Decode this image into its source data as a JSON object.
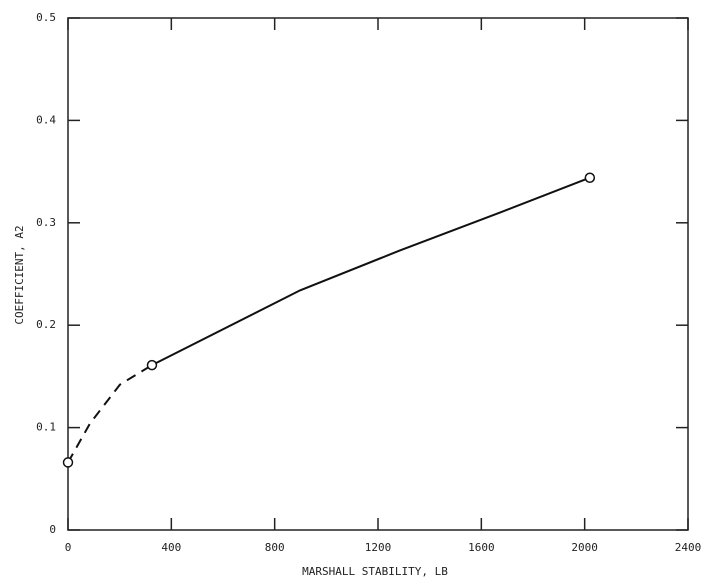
{
  "chart_data": {
    "type": "line",
    "xlabel": "MARSHALL STABILITY, LB",
    "ylabel": "COEFFICIENT, A2",
    "xlim": [
      0,
      2400
    ],
    "xticks": [
      0,
      400,
      800,
      1200,
      1600,
      2000,
      2400
    ],
    "ylim": [
      0,
      0.5
    ],
    "yticks": [
      0,
      0.1,
      0.2,
      0.3,
      0.4,
      0.5
    ],
    "color": "#111111",
    "series": [
      {
        "style": "dashed",
        "x": [
          0,
          85,
          201,
          325
        ],
        "values": [
          0.066,
          0.104,
          0.142,
          0.161
        ]
      },
      {
        "style": "solid",
        "x": [
          325,
          898,
          1285,
          1672,
          2020
        ],
        "values": [
          0.161,
          0.234,
          0.273,
          0.31,
          0.344
        ]
      }
    ],
    "markers": {
      "x": [
        0,
        325,
        2020
      ],
      "values": [
        0.066,
        0.161,
        0.344
      ]
    }
  }
}
